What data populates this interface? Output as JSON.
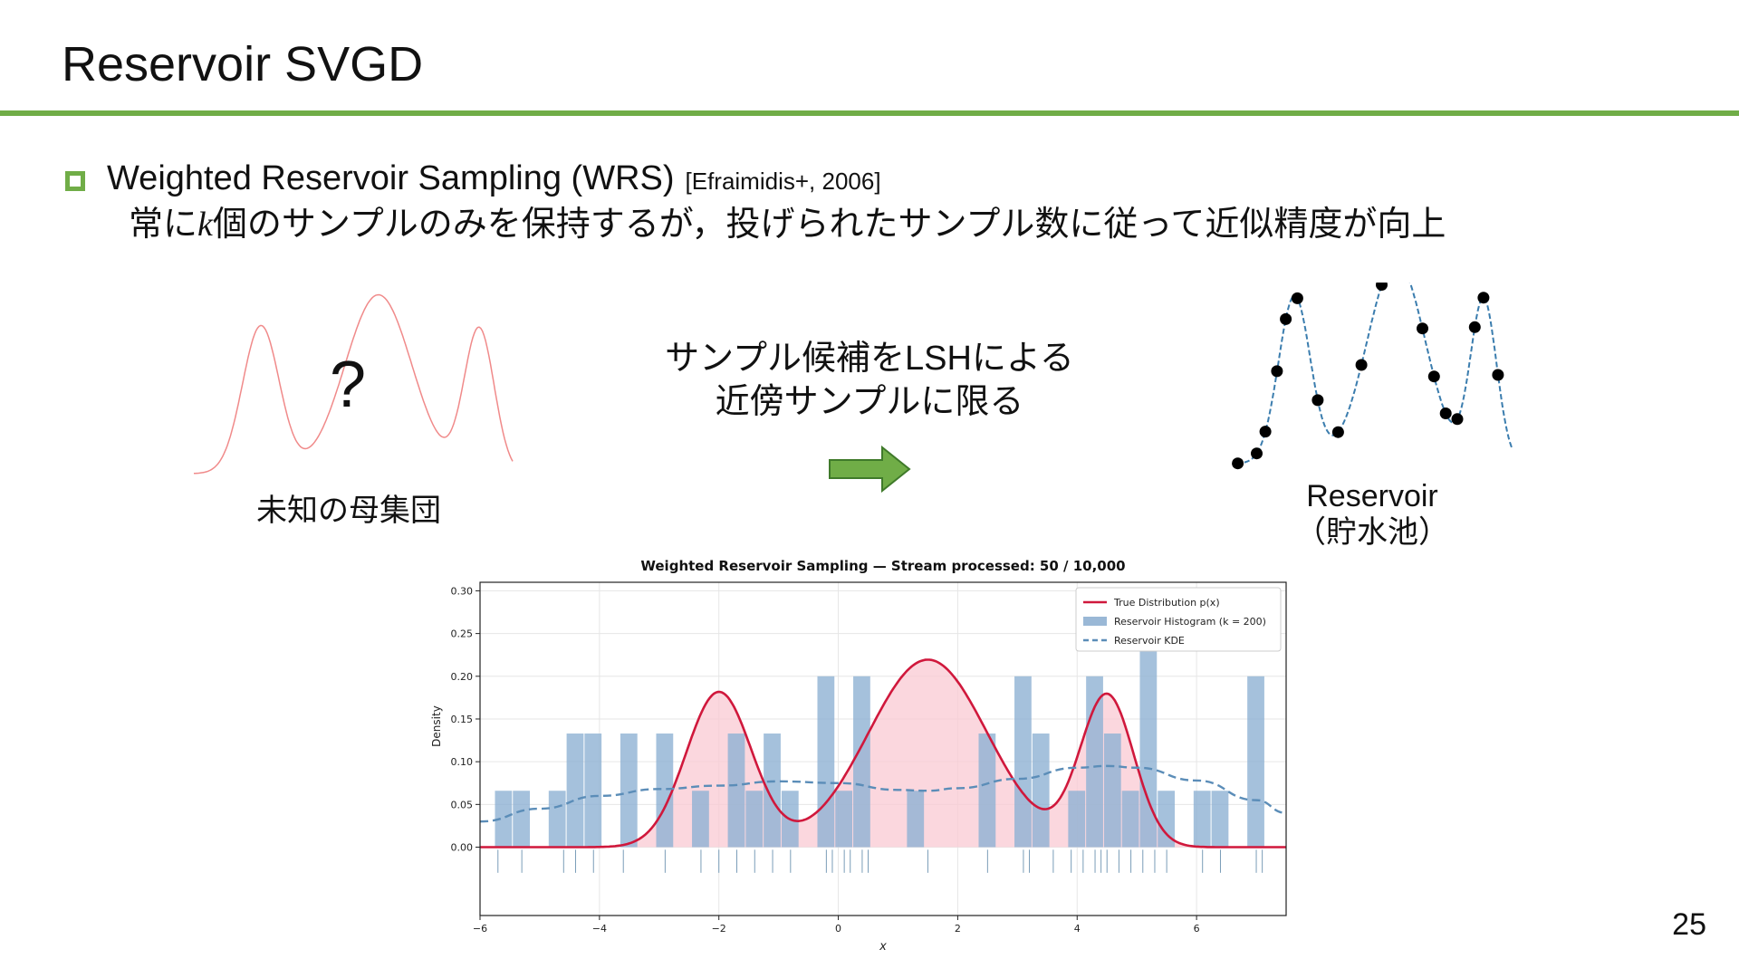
{
  "slide": {
    "title": "Reservoir SVGD",
    "bullet": {
      "main": "Weighted Reservoir Sampling (WRS)",
      "citation": "[Efraimidis+, 2006]",
      "sub_before_k": "常に",
      "k": "k",
      "sub_after_k": "個のサンプルのみを保持するが，投げられたサンプル数に従って近似精度が向上"
    },
    "left_figure": {
      "question_mark": "?",
      "label": "未知の母集団",
      "curve_color": "#f08a8a"
    },
    "middle": {
      "line1": "サンプル候補をLSHによる",
      "line2": "近傍サンプルに限る",
      "arrow_color": "#70ad47"
    },
    "right_figure": {
      "label_line1": "Reservoir",
      "label_line2": "（貯水池）"
    },
    "page_number": "25"
  },
  "chart_data": {
    "type": "bar",
    "title": "Weighted Reservoir Sampling  —  Stream processed: 50 / 10,000",
    "xlabel": "x",
    "ylabel": "Density",
    "xlim": [
      -6,
      7.5
    ],
    "ylim": [
      -0.08,
      0.31
    ],
    "xticks": [
      -6,
      -4,
      -2,
      0,
      2,
      4,
      6
    ],
    "yticks": [
      0.0,
      0.05,
      0.1,
      0.15,
      0.2,
      0.25,
      0.3
    ],
    "grid": true,
    "legend_position": "top-right",
    "legend": [
      {
        "label": "True Distribution  p(x)",
        "style": "solid-line",
        "color": "#d0183c"
      },
      {
        "label": "Reservoir Histogram  (k = 200)",
        "style": "patch",
        "color": "#9ab8d6"
      },
      {
        "label": "Reservoir KDE",
        "style": "dashed-line",
        "color": "#5b8db8"
      }
    ],
    "histogram": {
      "bin_width": 0.3,
      "bins": [
        {
          "x": -5.6,
          "h": 0.066
        },
        {
          "x": -5.3,
          "h": 0.066
        },
        {
          "x": -4.7,
          "h": 0.066
        },
        {
          "x": -4.4,
          "h": 0.133
        },
        {
          "x": -4.1,
          "h": 0.133
        },
        {
          "x": -3.5,
          "h": 0.133
        },
        {
          "x": -3.2,
          "h": 0.0
        },
        {
          "x": -2.9,
          "h": 0.133
        },
        {
          "x": -2.3,
          "h": 0.066
        },
        {
          "x": -1.7,
          "h": 0.133
        },
        {
          "x": -1.4,
          "h": 0.066
        },
        {
          "x": -1.1,
          "h": 0.133
        },
        {
          "x": -0.8,
          "h": 0.066
        },
        {
          "x": -0.2,
          "h": 0.2
        },
        {
          "x": 0.1,
          "h": 0.066
        },
        {
          "x": 0.4,
          "h": 0.2
        },
        {
          "x": 1.3,
          "h": 0.066
        },
        {
          "x": 2.5,
          "h": 0.133
        },
        {
          "x": 3.1,
          "h": 0.2
        },
        {
          "x": 3.4,
          "h": 0.133
        },
        {
          "x": 4.0,
          "h": 0.066
        },
        {
          "x": 4.3,
          "h": 0.2
        },
        {
          "x": 4.6,
          "h": 0.133
        },
        {
          "x": 4.9,
          "h": 0.066
        },
        {
          "x": 5.2,
          "h": 0.25
        },
        {
          "x": 5.5,
          "h": 0.066
        },
        {
          "x": 6.1,
          "h": 0.066
        },
        {
          "x": 6.4,
          "h": 0.066
        },
        {
          "x": 7.0,
          "h": 0.2
        }
      ]
    },
    "true_distribution": {
      "components": [
        {
          "weight": 0.25,
          "mean": -2.0,
          "std": 0.55
        },
        {
          "weight": 0.55,
          "mean": 1.5,
          "std": 1.0
        },
        {
          "weight": 0.2,
          "mean": 4.5,
          "std": 0.45
        }
      ]
    },
    "kde": {
      "points": [
        [
          -6,
          0.03
        ],
        [
          -5,
          0.045
        ],
        [
          -4,
          0.06
        ],
        [
          -3,
          0.068
        ],
        [
          -2,
          0.072
        ],
        [
          -1,
          0.077
        ],
        [
          0,
          0.075
        ],
        [
          1,
          0.067
        ],
        [
          1.5,
          0.066
        ],
        [
          2,
          0.069
        ],
        [
          3,
          0.08
        ],
        [
          4,
          0.093
        ],
        [
          4.5,
          0.095
        ],
        [
          5,
          0.093
        ],
        [
          6,
          0.078
        ],
        [
          7,
          0.055
        ],
        [
          7.5,
          0.04
        ]
      ]
    },
    "rug": [
      -5.7,
      -5.3,
      -4.6,
      -4.4,
      -4.1,
      -3.6,
      -2.9,
      -2.3,
      -2.0,
      -1.7,
      -1.4,
      -1.1,
      -0.8,
      -0.2,
      -0.1,
      0.1,
      0.2,
      0.4,
      0.5,
      1.5,
      2.5,
      3.1,
      3.2,
      3.6,
      3.9,
      4.1,
      4.3,
      4.4,
      4.5,
      4.7,
      4.9,
      5.1,
      5.3,
      5.5,
      6.1,
      6.4,
      7.0,
      7.1
    ]
  }
}
